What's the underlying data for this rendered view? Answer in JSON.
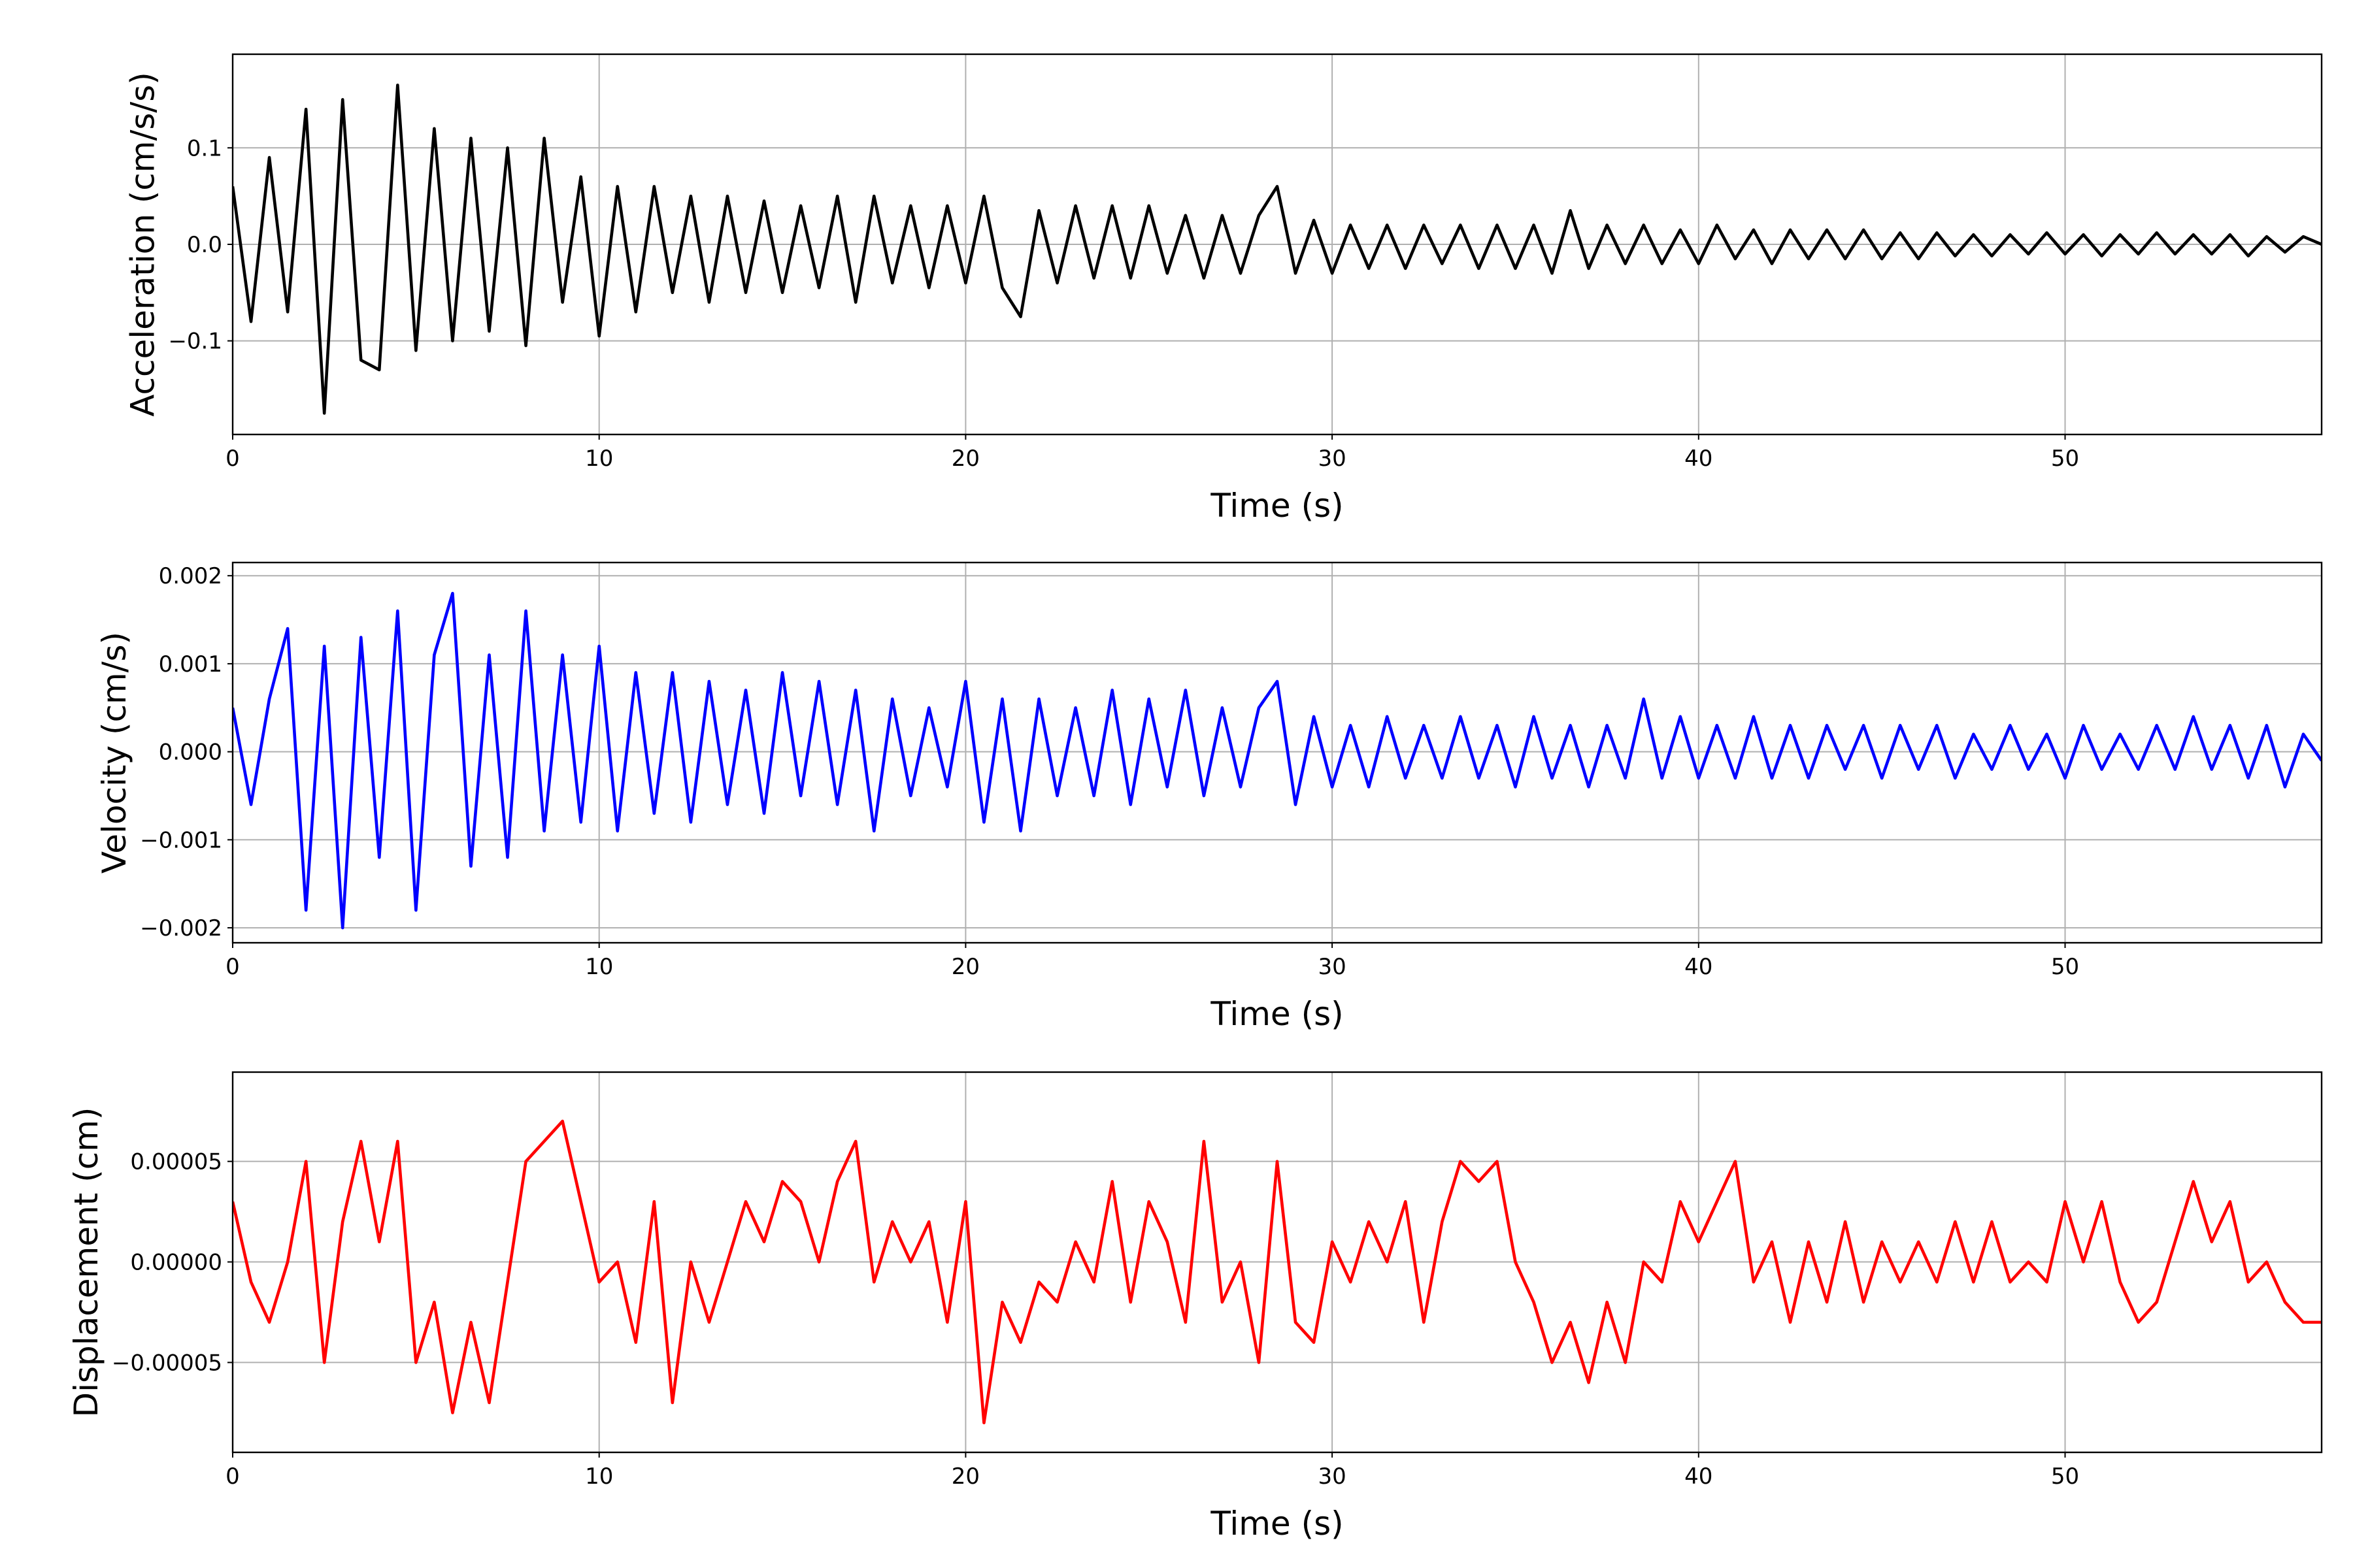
{
  "chart_data": [
    {
      "type": "line",
      "ylabel": "Acceleration (cm/s/s)",
      "xlabel": "Time (s)",
      "color": "#000000",
      "grid": true,
      "xlim": [
        0,
        57
      ],
      "xticks": [
        0,
        10,
        20,
        30,
        40,
        50
      ],
      "ylim": [
        -0.197,
        0.197
      ],
      "yticks": [
        {
          "value": -0.1,
          "label": "−0.1"
        },
        {
          "value": 0,
          "label": "0.0"
        },
        0.1
      ],
      "x": [
        0,
        0.5,
        1,
        1.5,
        2,
        2.5,
        3,
        3.5,
        4,
        4.5,
        5,
        5.5,
        6,
        6.5,
        7,
        7.5,
        8,
        8.5,
        9,
        9.5,
        10,
        10.5,
        11,
        11.5,
        12,
        12.5,
        13,
        13.5,
        14,
        14.5,
        15,
        15.5,
        16,
        16.5,
        17,
        17.5,
        18,
        18.5,
        19,
        19.5,
        20,
        20.5,
        21,
        21.5,
        22,
        22.5,
        23,
        23.5,
        24,
        24.5,
        25,
        25.5,
        26,
        26.5,
        27,
        27.5,
        28,
        28.5,
        29,
        29.5,
        30,
        30.5,
        31,
        31.5,
        32,
        32.5,
        33,
        33.5,
        34,
        34.5,
        35,
        35.5,
        36,
        36.5,
        37,
        37.5,
        38,
        38.5,
        39,
        39.5,
        40,
        40.5,
        41,
        41.5,
        42,
        42.5,
        43,
        43.5,
        44,
        44.5,
        45,
        45.5,
        46,
        46.5,
        47,
        47.5,
        48,
        48.5,
        49,
        49.5,
        50,
        50.5,
        51,
        51.5,
        52,
        52.5,
        53,
        53.5,
        54,
        54.5,
        55,
        55.5,
        56,
        56.5,
        57
      ],
      "values": [
        0.06,
        -0.08,
        0.09,
        -0.07,
        0.14,
        -0.175,
        0.15,
        -0.12,
        -0.13,
        0.165,
        -0.11,
        0.12,
        -0.1,
        0.11,
        -0.09,
        0.1,
        -0.105,
        0.11,
        -0.06,
        0.07,
        -0.095,
        0.06,
        -0.07,
        0.06,
        -0.05,
        0.05,
        -0.06,
        0.05,
        -0.05,
        0.045,
        -0.05,
        0.04,
        -0.045,
        0.05,
        -0.06,
        0.05,
        -0.04,
        0.04,
        -0.045,
        0.04,
        -0.04,
        0.05,
        -0.045,
        -0.075,
        0.035,
        -0.04,
        0.04,
        -0.035,
        0.04,
        -0.035,
        0.04,
        -0.03,
        0.03,
        -0.035,
        0.03,
        -0.03,
        0.03,
        0.06,
        -0.03,
        0.025,
        -0.03,
        0.02,
        -0.025,
        0.02,
        -0.025,
        0.02,
        -0.02,
        0.02,
        -0.025,
        0.02,
        -0.025,
        0.02,
        -0.03,
        0.035,
        -0.025,
        0.02,
        -0.02,
        0.02,
        -0.02,
        0.015,
        -0.02,
        0.02,
        -0.015,
        0.015,
        -0.02,
        0.015,
        -0.015,
        0.015,
        -0.015,
        0.015,
        -0.015,
        0.012,
        -0.015,
        0.012,
        -0.012,
        0.01,
        -0.012,
        0.01,
        -0.01,
        0.012,
        -0.01,
        0.01,
        -0.012,
        0.01,
        -0.01,
        0.012,
        -0.01,
        0.01,
        -0.01,
        0.01,
        -0.012,
        0.008,
        -0.008,
        0.008,
        0
      ]
    },
    {
      "type": "line",
      "ylabel": "Velocity (cm/s)",
      "xlabel": "Time (s)",
      "color": "#0000ff",
      "grid": true,
      "xlim": [
        0,
        57
      ],
      "xticks": [
        0,
        10,
        20,
        30,
        40,
        50
      ],
      "ylim": [
        -0.00217,
        0.00215
      ],
      "yticks": [
        {
          "value": -0.002,
          "label": "−0.002"
        },
        {
          "value": -0.001,
          "label": "−0.001"
        },
        {
          "value": 0,
          "label": "0.000"
        },
        0.001,
        0.002
      ],
      "x": [
        0,
        0.5,
        1,
        1.5,
        2,
        2.5,
        3,
        3.5,
        4,
        4.5,
        5,
        5.5,
        6,
        6.5,
        7,
        7.5,
        8,
        8.5,
        9,
        9.5,
        10,
        10.5,
        11,
        11.5,
        12,
        12.5,
        13,
        13.5,
        14,
        14.5,
        15,
        15.5,
        16,
        16.5,
        17,
        17.5,
        18,
        18.5,
        19,
        19.5,
        20,
        20.5,
        21,
        21.5,
        22,
        22.5,
        23,
        23.5,
        24,
        24.5,
        25,
        25.5,
        26,
        26.5,
        27,
        27.5,
        28,
        28.5,
        29,
        29.5,
        30,
        30.5,
        31,
        31.5,
        32,
        32.5,
        33,
        33.5,
        34,
        34.5,
        35,
        35.5,
        36,
        36.5,
        37,
        37.5,
        38,
        38.5,
        39,
        39.5,
        40,
        40.5,
        41,
        41.5,
        42,
        42.5,
        43,
        43.5,
        44,
        44.5,
        45,
        45.5,
        46,
        46.5,
        47,
        47.5,
        48,
        48.5,
        49,
        49.5,
        50,
        50.5,
        51,
        51.5,
        52,
        52.5,
        53,
        53.5,
        54,
        54.5,
        55,
        55.5,
        56,
        56.5,
        57
      ],
      "values": [
        0.0005,
        -0.0006,
        0.0006,
        0.0014,
        -0.0018,
        0.0012,
        -0.002,
        0.0013,
        -0.0012,
        0.0016,
        -0.0018,
        0.0011,
        0.0018,
        -0.0013,
        0.0011,
        -0.0012,
        0.0016,
        -0.0009,
        0.0011,
        -0.0008,
        0.0012,
        -0.0009,
        0.0009,
        -0.0007,
        0.0009,
        -0.0008,
        0.0008,
        -0.0006,
        0.0007,
        -0.0007,
        0.0009,
        -0.0005,
        0.0008,
        -0.0006,
        0.0007,
        -0.0009,
        0.0006,
        -0.0005,
        0.0005,
        -0.0004,
        0.0008,
        -0.0008,
        0.0006,
        -0.0009,
        0.0006,
        -0.0005,
        0.0005,
        -0.0005,
        0.0007,
        -0.0006,
        0.0006,
        -0.0004,
        0.0007,
        -0.0005,
        0.0005,
        -0.0004,
        0.0005,
        0.0008,
        -0.0006,
        0.0004,
        -0.0004,
        0.0003,
        -0.0004,
        0.0004,
        -0.0003,
        0.0003,
        -0.0003,
        0.0004,
        -0.0003,
        0.0003,
        -0.0004,
        0.0004,
        -0.0003,
        0.0003,
        -0.0004,
        0.0003,
        -0.0003,
        0.0006,
        -0.0003,
        0.0004,
        -0.0003,
        0.0003,
        -0.0003,
        0.0004,
        -0.0003,
        0.0003,
        -0.0003,
        0.0003,
        -0.0002,
        0.0003,
        -0.0003,
        0.0003,
        -0.0002,
        0.0003,
        -0.0003,
        0.0002,
        -0.0002,
        0.0003,
        -0.0002,
        0.0002,
        -0.0003,
        0.0003,
        -0.0002,
        0.0002,
        -0.0002,
        0.0003,
        -0.0002,
        0.0004,
        -0.0002,
        0.0003,
        -0.0003,
        0.0003,
        -0.0004,
        0.0002,
        -0.0001
      ]
    },
    {
      "type": "line",
      "ylabel": "Displacement (cm)",
      "xlabel": "Time (s)",
      "color": "#ff0000",
      "grid": true,
      "xlim": [
        0,
        57
      ],
      "xticks": [
        0,
        10,
        20,
        30,
        40,
        50
      ],
      "ylim": [
        -9.47e-05,
        9.44e-05
      ],
      "yticks": [
        {
          "value": -5e-05,
          "label": "−0.00005"
        },
        {
          "value": 0,
          "label": "0.00000"
        },
        5e-05
      ],
      "x": [
        0,
        0.5,
        1,
        1.5,
        2,
        2.5,
        3,
        3.5,
        4,
        4.5,
        5,
        5.5,
        6,
        6.5,
        7,
        7.5,
        8,
        8.5,
        9,
        9.5,
        10,
        10.5,
        11,
        11.5,
        12,
        12.5,
        13,
        13.5,
        14,
        14.5,
        15,
        15.5,
        16,
        16.5,
        17,
        17.5,
        18,
        18.5,
        19,
        19.5,
        20,
        20.5,
        21,
        21.5,
        22,
        22.5,
        23,
        23.5,
        24,
        24.5,
        25,
        25.5,
        26,
        26.5,
        27,
        27.5,
        28,
        28.5,
        29,
        29.5,
        30,
        30.5,
        31,
        31.5,
        32,
        32.5,
        33,
        33.5,
        34,
        34.5,
        35,
        35.5,
        36,
        36.5,
        37,
        37.5,
        38,
        38.5,
        39,
        39.5,
        40,
        40.5,
        41,
        41.5,
        42,
        42.5,
        43,
        43.5,
        44,
        44.5,
        45,
        45.5,
        46,
        46.5,
        47,
        47.5,
        48,
        48.5,
        49,
        49.5,
        50,
        50.5,
        51,
        51.5,
        52,
        52.5,
        53,
        53.5,
        54,
        54.5,
        55,
        55.5,
        56,
        56.5,
        57
      ],
      "values": [
        3e-05,
        -1e-05,
        -3e-05,
        0,
        5e-05,
        -5e-05,
        2e-05,
        6e-05,
        1e-05,
        6e-05,
        -5e-05,
        -2e-05,
        -7.5e-05,
        -3e-05,
        -7e-05,
        -1e-05,
        5e-05,
        6e-05,
        7e-05,
        3e-05,
        -1e-05,
        0,
        -4e-05,
        3e-05,
        -7e-05,
        0,
        -3e-05,
        0,
        3e-05,
        1e-05,
        4e-05,
        3e-05,
        0,
        4e-05,
        6e-05,
        -1e-05,
        2e-05,
        0,
        2e-05,
        -3e-05,
        3e-05,
        -8e-05,
        -2e-05,
        -4e-05,
        -1e-05,
        -2e-05,
        1e-05,
        -1e-05,
        4e-05,
        -2e-05,
        3e-05,
        1e-05,
        -3e-05,
        6e-05,
        -2e-05,
        0,
        -5e-05,
        5e-05,
        -3e-05,
        -4e-05,
        1e-05,
        -1e-05,
        2e-05,
        0,
        3e-05,
        -3e-05,
        2e-05,
        5e-05,
        4e-05,
        5e-05,
        0,
        -2e-05,
        -5e-05,
        -3e-05,
        -6e-05,
        -2e-05,
        -5e-05,
        0,
        -1e-05,
        3e-05,
        1e-05,
        3e-05,
        5e-05,
        -1e-05,
        1e-05,
        -3e-05,
        1e-05,
        -2e-05,
        2e-05,
        -2e-05,
        1e-05,
        -1e-05,
        1e-05,
        -1e-05,
        2e-05,
        -1e-05,
        2e-05,
        -1e-05,
        0,
        -1e-05,
        3e-05,
        0,
        3e-05,
        -1e-05,
        -3e-05,
        -2e-05,
        1e-05,
        4e-05,
        1e-05,
        3e-05,
        -1e-05,
        0,
        -2e-05,
        -3e-05,
        -3e-05
      ]
    }
  ]
}
